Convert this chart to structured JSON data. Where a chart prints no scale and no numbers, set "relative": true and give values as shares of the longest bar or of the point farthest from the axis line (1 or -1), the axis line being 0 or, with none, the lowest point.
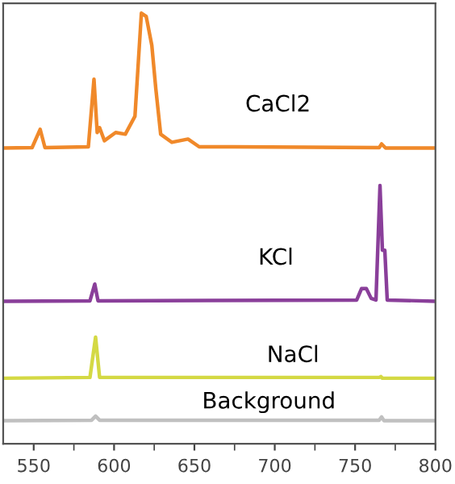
{
  "chart_data": {
    "type": "line",
    "relative": true,
    "xlim": [
      531,
      800
    ],
    "xticks": [
      550,
      600,
      650,
      700,
      750,
      800
    ],
    "tick_labels": "x",
    "grid": false,
    "legend": false,
    "marker": "none",
    "line_style": "solid",
    "series": [
      {
        "name": "CaCl2",
        "color": "#f0892a",
        "x": [
          531,
          549,
          554,
          557,
          584,
          587.5,
          589.5,
          591,
          594,
          601,
          607,
          613,
          617,
          620,
          623.5,
          626,
          629,
          636,
          646,
          653,
          674,
          765,
          766.5,
          769,
          799
        ],
        "values": [
          0.669,
          0.67,
          0.715,
          0.67,
          0.672,
          0.838,
          0.707,
          0.719,
          0.687,
          0.707,
          0.703,
          0.747,
          1.0,
          0.992,
          0.921,
          0.814,
          0.703,
          0.683,
          0.691,
          0.672,
          0.672,
          0.67,
          0.679,
          0.669,
          0.669
        ]
      },
      {
        "name": "KCl",
        "color": "#8a3f9a",
        "x": [
          531,
          585,
          588,
          590,
          751,
          754,
          757,
          760,
          763,
          765.5,
          767,
          768.5,
          770,
          799
        ],
        "values": [
          0.293,
          0.294,
          0.335,
          0.294,
          0.296,
          0.324,
          0.324,
          0.3,
          0.296,
          0.577,
          0.418,
          0.418,
          0.296,
          0.293
        ]
      },
      {
        "name": "NaCl",
        "color": "#d4d944",
        "x": [
          531,
          585,
          588.5,
          591,
          765,
          766,
          767,
          799
        ],
        "values": [
          0.104,
          0.106,
          0.205,
          0.106,
          0.106,
          0.108,
          0.104,
          0.104
        ]
      },
      {
        "name": "Background",
        "color": "#c0c0c0",
        "x": [
          531,
          586,
          588.5,
          591,
          765,
          766.5,
          768,
          799
        ],
        "values": [
          0.0,
          0.001,
          0.011,
          0.001,
          0.001,
          0.009,
          0.0,
          0.0
        ]
      }
    ]
  }
}
